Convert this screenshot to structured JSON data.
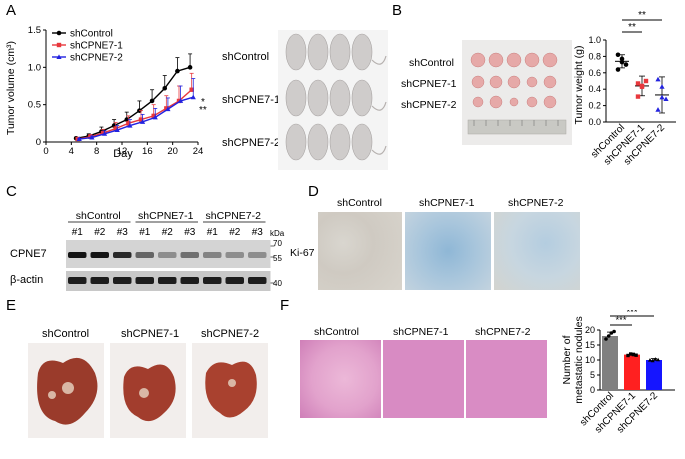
{
  "panels": {
    "A": "A",
    "B": "B",
    "C": "C",
    "D": "D",
    "E": "E",
    "F": "F"
  },
  "groups": [
    "shControl",
    "shCPNE7-1",
    "shCPNE7-2"
  ],
  "colors": {
    "shControl": "#000000",
    "shCPNE7-1": "#e8383d",
    "shCPNE7-2": "#2222e0",
    "bar_control": "#808080",
    "bar_cp1": "#ff2020",
    "bar_cp2": "#1515ff"
  },
  "chart_data": [
    {
      "type": "line",
      "ylabel": "Tumor volume (cm³)",
      "xlabel": "Day",
      "xlim": [
        0,
        24
      ],
      "ylim": [
        0,
        1.5
      ],
      "x_ticks": [
        0,
        4,
        8,
        12,
        16,
        20,
        24
      ],
      "y_ticks": [
        "0",
        "0.5",
        "1.0",
        "1.5"
      ],
      "x": [
        5,
        7,
        9,
        11,
        13,
        15,
        17,
        19,
        21,
        23
      ],
      "series": [
        {
          "name": "shControl",
          "values": [
            0.05,
            0.08,
            0.14,
            0.22,
            0.3,
            0.42,
            0.55,
            0.72,
            0.95,
            1.0
          ],
          "err": [
            0.01,
            0.03,
            0.06,
            0.08,
            0.1,
            0.13,
            0.15,
            0.17,
            0.18,
            0.18
          ]
        },
        {
          "name": "shCPNE7-1",
          "values": [
            0.04,
            0.07,
            0.12,
            0.18,
            0.25,
            0.3,
            0.35,
            0.45,
            0.55,
            0.7
          ],
          "err": [
            0.01,
            0.03,
            0.05,
            0.08,
            0.1,
            0.12,
            0.15,
            0.17,
            0.2,
            0.22
          ]
        },
        {
          "name": "shCPNE7-2",
          "values": [
            0.04,
            0.06,
            0.11,
            0.16,
            0.22,
            0.27,
            0.33,
            0.44,
            0.55,
            0.6
          ],
          "err": [
            0.01,
            0.02,
            0.04,
            0.06,
            0.08,
            0.1,
            0.12,
            0.15,
            0.2,
            0.25
          ]
        }
      ],
      "annotations": [
        "*",
        "**"
      ]
    },
    {
      "type": "scatter",
      "ylabel": "Tumor weight (g)",
      "ylim": [
        0,
        1.0
      ],
      "y_ticks": [
        "0.0",
        "0.2",
        "0.4",
        "0.6",
        "0.8",
        "1.0"
      ],
      "categories": [
        "shControl",
        "shCPNE7-1",
        "shCPNE7-2"
      ],
      "means": [
        0.74,
        0.44,
        0.33
      ],
      "sd": [
        0.08,
        0.12,
        0.22
      ],
      "points": [
        [
          0.82,
          0.77,
          0.7,
          0.64,
          0.73
        ],
        [
          0.47,
          0.43,
          0.5,
          0.31,
          0.44
        ],
        [
          0.52,
          0.43,
          0.28,
          0.15,
          0.3
        ]
      ],
      "significance": [
        "**",
        "**"
      ]
    },
    {
      "type": "bar",
      "ylabel": "Number of metastatic nodules",
      "ylim": [
        0,
        20
      ],
      "y_ticks": [
        "0",
        "5",
        "10",
        "15",
        "20"
      ],
      "categories": [
        "shControl",
        "shCPNE7-1",
        "shCPNE7-2"
      ],
      "values": [
        18,
        11.8,
        10
      ],
      "sd": [
        1.3,
        0.5,
        0.5
      ],
      "points": [
        [
          17,
          18,
          19,
          19.5
        ],
        [
          11.5,
          12,
          11.8,
          11.6
        ],
        [
          10,
          9.8,
          10.3,
          10.1
        ]
      ],
      "significance": [
        "***",
        "***"
      ]
    }
  ],
  "panelA": {
    "photo_labels": [
      "shControl",
      "shCPNE7-1",
      "shCPNE7-2"
    ]
  },
  "panelB": {
    "photo_labels": [
      "shControl",
      "shCPNE7-1",
      "shCPNE7-2"
    ]
  },
  "panelC": {
    "groups": [
      "shControl",
      "shCPNE7-1",
      "shCPNE7-2"
    ],
    "lanes": [
      "#1",
      "#2",
      "#3",
      "#1",
      "#2",
      "#3",
      "#1",
      "#2",
      "#3"
    ],
    "kda": "kDa",
    "markers": [
      "70",
      "55",
      "40"
    ],
    "proteins": [
      "CPNE7",
      "β-actin"
    ]
  },
  "panelD": {
    "headers": [
      "shControl",
      "shCPNE7-1",
      "shCPNE7-2"
    ],
    "row_label": "Ki-67"
  },
  "panelE": {
    "headers": [
      "shControl",
      "shCPNE7-1",
      "shCPNE7-2"
    ]
  },
  "panelF": {
    "headers": [
      "shControl",
      "shCPNE7-1",
      "shCPNE7-2"
    ]
  }
}
